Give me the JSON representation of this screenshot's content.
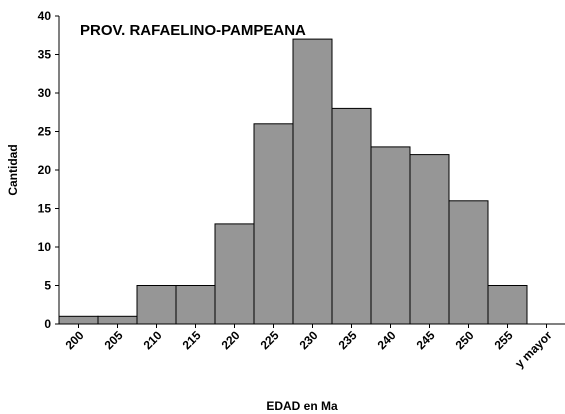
{
  "chart_data": {
    "type": "bar",
    "title": "PROV. RAFAELINO-PAMPEANA",
    "xlabel": "EDAD en Ma",
    "ylabel": "Cantidad",
    "categories": [
      "200",
      "205",
      "210",
      "215",
      "220",
      "225",
      "230",
      "235",
      "240",
      "245",
      "250",
      "255",
      "y mayor"
    ],
    "values": [
      1,
      1,
      5,
      5,
      13,
      26,
      37,
      28,
      23,
      22,
      16,
      5,
      0
    ],
    "ylim": [
      0,
      40
    ],
    "yticks": [
      0,
      5,
      10,
      15,
      20,
      25,
      30,
      35,
      40
    ],
    "grid": false,
    "legend": false,
    "colors": {
      "bar_fill": "#969696",
      "bar_stroke": "#000000",
      "axis": "#000000"
    }
  }
}
